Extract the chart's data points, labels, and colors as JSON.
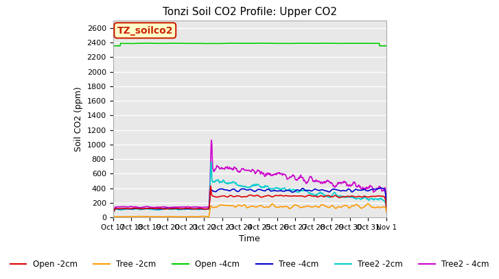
{
  "title": "Tonzi Soil CO2 Profile: Upper CO2",
  "xlabel": "Time",
  "ylabel": "Soil CO2 (ppm)",
  "ylim": [
    0,
    2700
  ],
  "yticks": [
    0,
    200,
    400,
    600,
    800,
    1000,
    1200,
    1400,
    1600,
    1800,
    2000,
    2200,
    2400,
    2600
  ],
  "fig_bg": "#ffffff",
  "plot_bg": "#e8e8e8",
  "grid_color": "#ffffff",
  "label_box": {
    "text": "TZ_soilco2",
    "facecolor": "#ffffcc",
    "edgecolor": "#cc2200",
    "textcolor": "#cc2200",
    "fontsize": 10,
    "fontweight": "bold"
  },
  "series": {
    "open_2cm": {
      "color": "#dd0000",
      "label": "Open -2cm",
      "linewidth": 1.2
    },
    "tree_2cm": {
      "color": "#ff9900",
      "label": "Tree -2cm",
      "linewidth": 1.2
    },
    "open_4cm": {
      "color": "#00cc00",
      "label": "Open -4cm",
      "linewidth": 1.2
    },
    "tree_4cm": {
      "color": "#0000cc",
      "label": "Tree -4cm",
      "linewidth": 1.2
    },
    "tree2_2cm": {
      "color": "#00cccc",
      "label": "Tree2 -2cm",
      "linewidth": 1.2
    },
    "tree2_4cm": {
      "color": "#cc00cc",
      "label": "Tree2 - 4cm",
      "linewidth": 1.2
    }
  },
  "x_tick_labels": [
    "Oct 17",
    "Oct 18",
    "Oct 19",
    "Oct 20",
    "Oct 21",
    "Oct 22",
    "Oct 23",
    "Oct 24",
    "Oct 25",
    "Oct 26",
    "Oct 27",
    "Oct 28",
    "Oct 29",
    "Oct 30",
    "Oct 31",
    "Nov 1"
  ],
  "n_days": 15,
  "n_points": 720,
  "t_rise": 5.3,
  "legend": {
    "ncol": 6,
    "fontsize": 8.5
  }
}
